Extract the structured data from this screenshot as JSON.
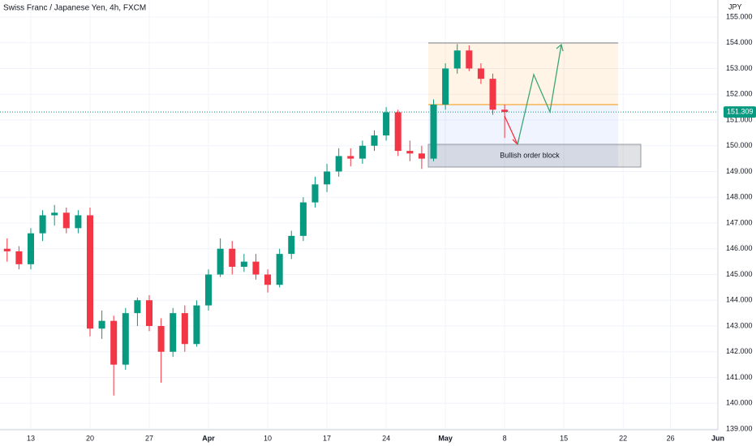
{
  "chart_data": {
    "type": "candlestick",
    "title": "Swiss Franc / Japanese Yen, 4h, FXCM",
    "currency": "JPY",
    "annotation": "Bullish order block",
    "last_price": 151.309,
    "up_color": "#089981",
    "down_color": "#f23645",
    "xlim": [
      -2.6,
      58.0
    ],
    "ylim": [
      138.97,
      155.66
    ],
    "xticks": [
      {
        "value": 0,
        "label": "13"
      },
      {
        "value": 5,
        "label": "20"
      },
      {
        "value": 10,
        "label": "27"
      },
      {
        "value": 15,
        "label": "Apr"
      },
      {
        "value": 20,
        "label": "10"
      },
      {
        "value": 25,
        "label": "17"
      },
      {
        "value": 30,
        "label": "24"
      },
      {
        "value": 35,
        "label": "May"
      },
      {
        "value": 40,
        "label": "8"
      },
      {
        "value": 45,
        "label": "15"
      },
      {
        "value": 50,
        "label": "22"
      },
      {
        "value": 54,
        "label": "26"
      },
      {
        "value": 58,
        "label": "Jun"
      }
    ],
    "yticks": [
      {
        "value": 139,
        "label": "139.000"
      },
      {
        "value": 140,
        "label": "140.000"
      },
      {
        "value": 141,
        "label": "141.000"
      },
      {
        "value": 142,
        "label": "142.000"
      },
      {
        "value": 143,
        "label": "143.000"
      },
      {
        "value": 144,
        "label": "144.000"
      },
      {
        "value": 145,
        "label": "145.000"
      },
      {
        "value": 146,
        "label": "146.000"
      },
      {
        "value": 147,
        "label": "147.000"
      },
      {
        "value": 148,
        "label": "148.000"
      },
      {
        "value": 149,
        "label": "149.000"
      },
      {
        "value": 150,
        "label": "150.000"
      },
      {
        "value": 151,
        "label": "151.000"
      },
      {
        "value": 152,
        "label": "152.000"
      },
      {
        "value": 153,
        "label": "153.000"
      },
      {
        "value": 154,
        "label": "154.000"
      },
      {
        "value": 155,
        "label": "155.000"
      }
    ],
    "x": [
      -2,
      -1,
      0,
      1,
      2,
      3,
      4,
      5,
      6,
      7,
      8,
      9,
      10,
      11,
      12,
      13,
      14,
      15,
      16,
      17,
      18,
      19,
      20,
      21,
      22,
      23,
      24,
      25,
      26,
      27,
      28,
      29,
      30,
      31,
      32,
      33,
      34,
      35,
      36,
      37,
      38,
      39,
      40
    ],
    "open": [
      146.0,
      145.9,
      145.4,
      146.6,
      147.3,
      147.4,
      146.8,
      147.3,
      142.9,
      143.2,
      141.5,
      143.5,
      144.0,
      143.0,
      142.0,
      143.5,
      142.3,
      143.8,
      145.0,
      146.0,
      145.3,
      145.5,
      145.0,
      144.6,
      145.8,
      146.5,
      147.8,
      148.5,
      149.0,
      149.6,
      149.5,
      150.0,
      150.4,
      151.3,
      149.8,
      149.7,
      149.5,
      151.6,
      153.0,
      153.7,
      153.0,
      152.6,
      151.4
    ],
    "high": [
      146.4,
      146.1,
      146.8,
      147.5,
      147.7,
      147.6,
      147.5,
      147.6,
      143.6,
      143.4,
      143.7,
      144.1,
      144.2,
      143.3,
      143.7,
      143.8,
      144.0,
      145.2,
      146.4,
      146.3,
      145.8,
      145.8,
      145.2,
      146.0,
      146.7,
      148.0,
      148.8,
      149.3,
      149.9,
      149.9,
      150.2,
      150.6,
      151.5,
      151.4,
      150.2,
      150.0,
      151.8,
      153.2,
      153.95,
      153.9,
      153.2,
      152.8,
      151.6
    ],
    "low": [
      145.5,
      145.2,
      145.2,
      146.3,
      146.9,
      146.6,
      146.6,
      142.6,
      142.5,
      140.3,
      141.3,
      143.0,
      142.8,
      140.8,
      141.8,
      142.0,
      142.2,
      143.6,
      144.9,
      145.0,
      145.1,
      144.8,
      144.3,
      144.5,
      145.6,
      146.3,
      147.6,
      148.2,
      148.8,
      149.2,
      149.3,
      149.8,
      150.2,
      149.6,
      149.4,
      149.1,
      149.4,
      151.4,
      152.8,
      152.9,
      152.4,
      151.2,
      150.3
    ],
    "close": [
      145.9,
      145.4,
      146.6,
      147.3,
      147.4,
      146.8,
      147.3,
      142.9,
      143.2,
      141.5,
      143.5,
      144.0,
      143.0,
      142.0,
      143.5,
      142.3,
      143.8,
      145.0,
      146.0,
      145.3,
      145.5,
      145.0,
      144.6,
      145.8,
      146.5,
      147.8,
      148.5,
      149.0,
      149.6,
      149.5,
      150.0,
      150.4,
      151.3,
      149.8,
      149.7,
      149.5,
      151.6,
      153.0,
      153.7,
      153.0,
      152.6,
      151.4,
      151.309
    ]
  }
}
